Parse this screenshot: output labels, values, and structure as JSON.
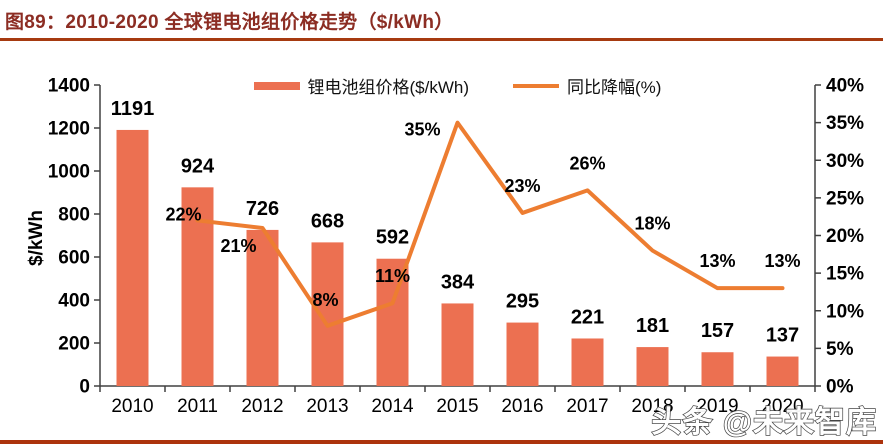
{
  "header": {
    "title": "图89：2010-2020 全球锂电池组价格走势（$/kWh）",
    "title_color": "#8C2D23",
    "divider_color": "#A63A10"
  },
  "footer": {
    "watermark": "头条 @未来智库",
    "divider_color": "#AC330D"
  },
  "chart_data": {
    "type": "combo-bar-line",
    "title": "2010-2020 全球锂电池组价格走势（$/kWh）",
    "categories": [
      "2010",
      "2011",
      "2012",
      "2013",
      "2014",
      "2015",
      "2016",
      "2017",
      "2018",
      "2019",
      "2020"
    ],
    "series": [
      {
        "name": "锂电池组价格($/kWh)",
        "type": "bar",
        "axis": "left",
        "color": "#EC7051",
        "values": [
          1191,
          924,
          726,
          668,
          592,
          384,
          295,
          221,
          181,
          157,
          137
        ]
      },
      {
        "name": "同比降幅(%)",
        "type": "line",
        "axis": "right",
        "color": "#ED7D31",
        "values": [
          null,
          22,
          21,
          8,
          11,
          35,
          23,
          26,
          18,
          13,
          13
        ],
        "point_labels": [
          "",
          "22%",
          "21%",
          "8%",
          "11%",
          "35%",
          "23%",
          "26%",
          "18%",
          "13%",
          "13%"
        ]
      }
    ],
    "left_axis": {
      "title": "$/kWh",
      "min": 0,
      "max": 1400,
      "step": 200,
      "tick_labels": [
        "0",
        "200",
        "400",
        "600",
        "800",
        "1000",
        "1200",
        "1400"
      ]
    },
    "right_axis": {
      "min": 0,
      "max": 40,
      "step": 5,
      "tick_labels": [
        "0%",
        "5%",
        "10%",
        "15%",
        "20%",
        "25%",
        "30%",
        "35%",
        "40%"
      ]
    },
    "grid": false,
    "legend_position": "top-center",
    "background": "#FFFFFF",
    "axis_color": "#404040",
    "label_color": "#000000"
  }
}
